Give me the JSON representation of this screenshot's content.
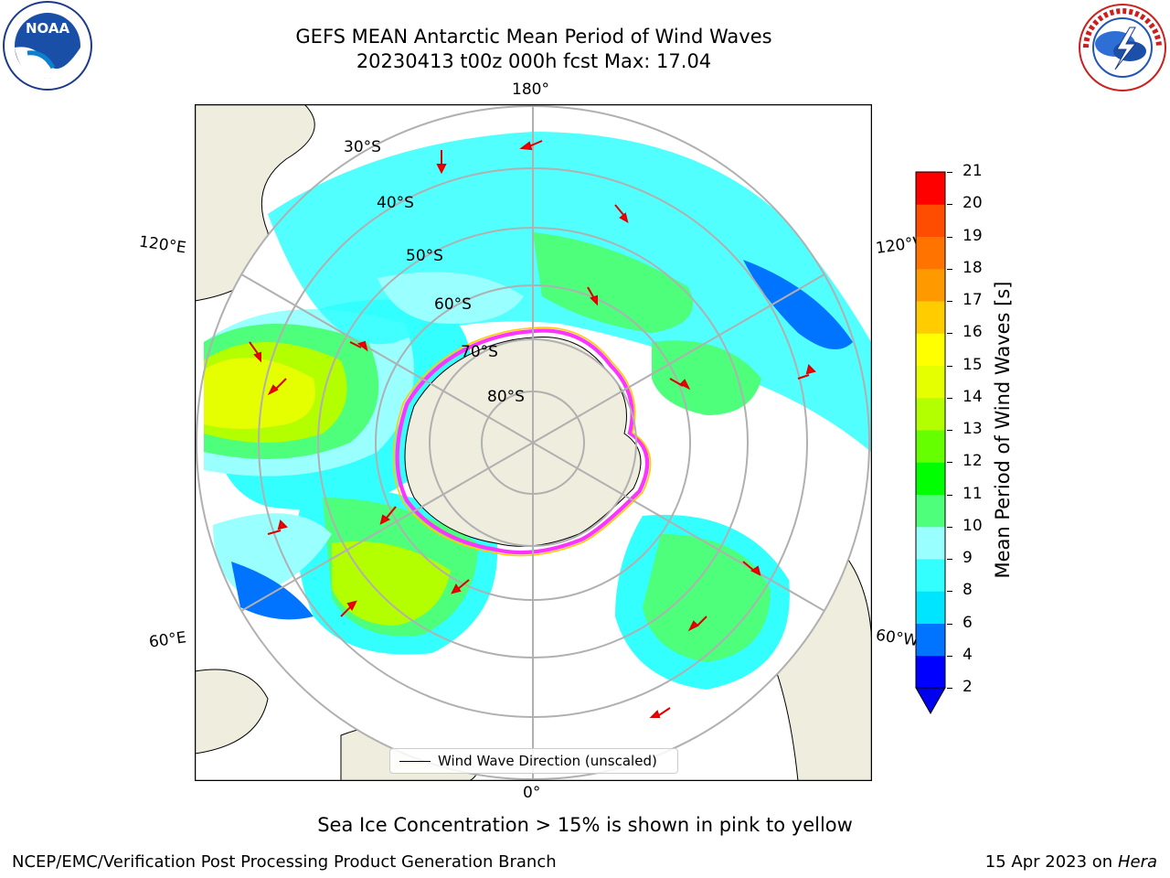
{
  "header": {
    "title_line1": "GEFS MEAN Antarctic Mean Period of Wind Waves",
    "title_line2": "20230413 t00z 000h fcst   Max: 17.04"
  },
  "logos": {
    "left": "NOAA",
    "left_ring_text": "NATIONAL OCEANIC AND ATMOSPHERIC ADMINISTRATION · U.S. DEPARTMENT OF COMMERCE",
    "right_ring_text": "NATIONAL WEATHER SERVICE"
  },
  "map": {
    "projection": "south polar stereographic",
    "lat_labels": [
      "30°S",
      "40°S",
      "50°S",
      "60°S",
      "70°S",
      "80°S"
    ],
    "lon_labels": {
      "top": "180°",
      "bottom": "0°",
      "upper_left": "120°E",
      "upper_right": "120°W",
      "lower_left": "60°E",
      "lower_right": "60°W"
    },
    "legend_label": "Wind Wave Direction (unscaled)",
    "land_color": "#efedde",
    "ice_edge_colors": [
      "#ff33ff",
      "#ffcc00"
    ]
  },
  "colorbar": {
    "title": "Mean Period of Wind Waves [s]",
    "ticks": [
      "2",
      "4",
      "6",
      "8",
      "9",
      "10",
      "11",
      "12",
      "13",
      "14",
      "15",
      "16",
      "17",
      "18",
      "19",
      "20",
      "21"
    ],
    "colors": [
      "#0000ff",
      "#0073ff",
      "#00e5ff",
      "#33ffff",
      "#99ffff",
      "#4dff7a",
      "#00ff00",
      "#66ff00",
      "#b3ff00",
      "#e5ff00",
      "#ffff00",
      "#ffcc00",
      "#ff9900",
      "#ff7300",
      "#ff4d00",
      "#ff0000"
    ],
    "extend_color": "#0000ee"
  },
  "caption": "Sea Ice Concentration > 15% is shown in pink to yellow",
  "footer": {
    "left": "NCEP/EMC/Verification Post Processing Product Generation Branch",
    "date": "15 Apr 2023 on ",
    "machine": "Hera"
  }
}
